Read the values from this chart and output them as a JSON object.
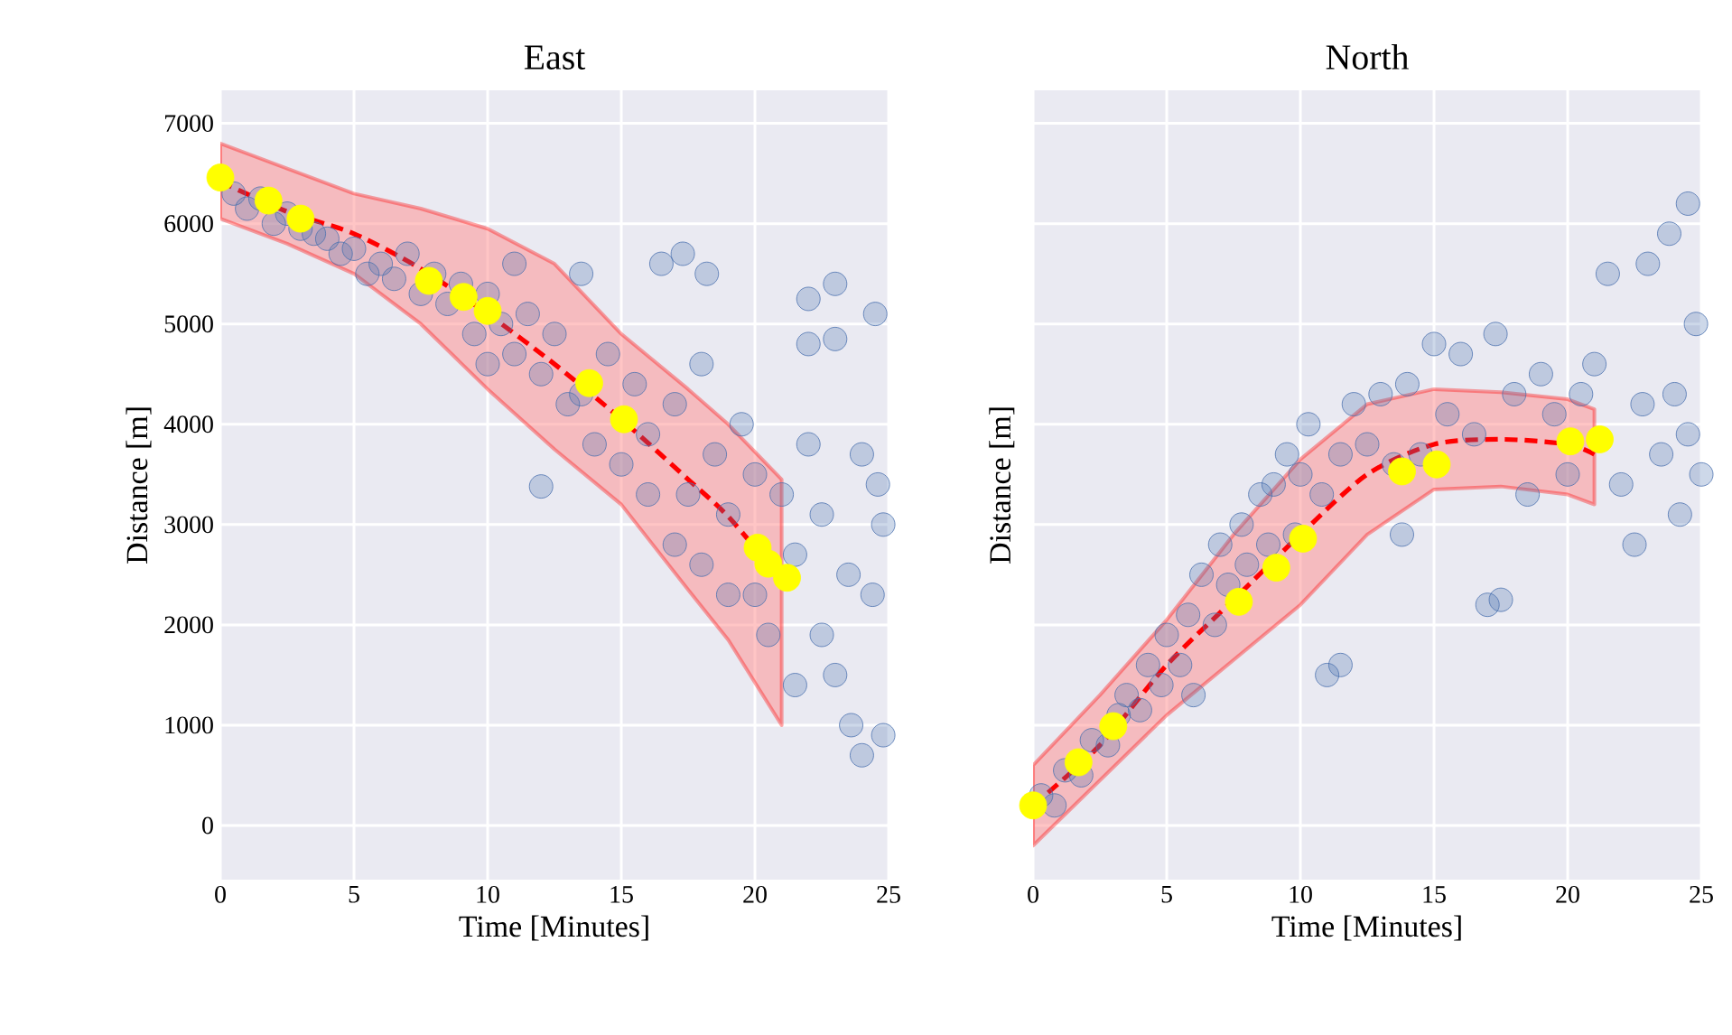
{
  "chart_data": [
    {
      "type": "scatter",
      "title": "East",
      "xlabel": "Time [Minutes]",
      "ylabel": "Distance [m]",
      "xlim": [
        0,
        25
      ],
      "ylim": [
        -540,
        7330
      ],
      "xticks": [
        0,
        5,
        10,
        15,
        20,
        25
      ],
      "yticks": [
        0,
        1000,
        2000,
        3000,
        4000,
        5000,
        6000,
        7000
      ],
      "grid": true,
      "series": [
        {
          "marker": "circle",
          "color": "#4c72b0",
          "x": [
            0.5,
            1,
            1.5,
            2,
            2.5,
            3,
            3.5,
            4,
            4.5,
            5,
            5.5,
            6,
            6.5,
            7,
            7.5,
            8,
            8.5,
            9,
            9.5,
            10,
            10,
            10.5,
            11,
            11,
            11.5,
            12,
            12,
            12.5,
            13,
            13.5,
            13.5,
            14,
            14.5,
            15,
            15.5,
            16,
            16,
            16.5,
            17,
            17,
            17.3,
            17.5,
            18,
            18,
            18.2,
            18.5,
            19,
            19,
            19.5,
            20,
            20,
            20.5,
            21,
            21.5,
            21.5,
            22,
            22,
            22.5,
            22.5,
            23,
            23,
            23.5,
            23.6,
            24,
            24,
            24.4,
            24.5,
            24.8,
            24.8,
            22,
            23,
            24.6
          ],
          "values": [
            6300,
            6150,
            6250,
            6000,
            6100,
            5950,
            5900,
            5850,
            5700,
            5750,
            5500,
            5600,
            5450,
            5700,
            5300,
            5500,
            5200,
            5400,
            4900,
            5300,
            4600,
            5000,
            5600,
            4700,
            5100,
            4500,
            3380,
            4900,
            4200,
            5500,
            4300,
            3800,
            4700,
            3600,
            4400,
            3300,
            3900,
            5600,
            2800,
            4200,
            5700,
            3300,
            2600,
            4600,
            5500,
            3700,
            3100,
            2300,
            4000,
            2300,
            3500,
            1900,
            3300,
            1400,
            2700,
            3800,
            5250,
            1900,
            3100,
            5400,
            1500,
            2500,
            1000,
            700,
            3700,
            2300,
            5100,
            3000,
            900,
            4800,
            4850,
            3400
          ]
        },
        {
          "type": "line",
          "line_style": "dashed",
          "marker": "none",
          "color": "#ff0000",
          "x": [
            0,
            2.5,
            5,
            7.5,
            10,
            12.5,
            15,
            17.5,
            19,
            21
          ],
          "values": [
            6420,
            6120,
            5900,
            5550,
            5100,
            4600,
            4050,
            3450,
            3080,
            2450
          ],
          "lower": [
            6050,
            5800,
            5500,
            5000,
            4350,
            3750,
            3200,
            2350,
            1850,
            1000
          ],
          "upper": [
            6800,
            6550,
            6300,
            6150,
            5950,
            5600,
            4900,
            4350,
            4000,
            3450
          ]
        },
        {
          "marker": "circle",
          "color": "#ffff00",
          "x": [
            0,
            1.8,
            3,
            7.8,
            9.1,
            10,
            13.8,
            15.1,
            20.1,
            20.5,
            21.2
          ],
          "values": [
            6460,
            6230,
            6050,
            5430,
            5270,
            5130,
            4410,
            4050,
            2770,
            2610,
            2470
          ]
        }
      ]
    },
    {
      "type": "scatter",
      "title": "North",
      "xlabel": "Time [Minutes]",
      "ylabel": "Distance [m]",
      "xlim": [
        0,
        25
      ],
      "ylim": [
        -540,
        7330
      ],
      "xticks": [
        0,
        5,
        10,
        15,
        20,
        25
      ],
      "yticks": [
        0,
        1000,
        2000,
        3000,
        4000,
        5000,
        6000,
        7000
      ],
      "grid": true,
      "tick_labels": "x",
      "series": [
        {
          "marker": "circle",
          "color": "#4c72b0",
          "x": [
            0.3,
            0.8,
            1.2,
            1.8,
            2.2,
            2.8,
            3.2,
            3.5,
            4,
            4.3,
            4.8,
            5,
            5.5,
            5.8,
            6,
            6.3,
            6.8,
            7,
            7.3,
            7.8,
            8,
            8.5,
            8.8,
            9,
            9.5,
            9.8,
            10,
            10.3,
            10.8,
            11,
            11.5,
            11.5,
            12,
            12.5,
            13,
            13.5,
            13.8,
            14,
            14.5,
            15,
            15.5,
            16,
            16.5,
            17,
            17.5,
            17.3,
            18,
            18.5,
            19,
            19.5,
            20,
            20.5,
            21,
            21.5,
            22,
            22.5,
            22.8,
            23,
            23.5,
            23.8,
            24,
            24.2,
            24.5,
            24.8,
            25,
            24.5
          ],
          "values": [
            300,
            200,
            550,
            500,
            850,
            800,
            1100,
            1300,
            1150,
            1600,
            1400,
            1900,
            1600,
            2100,
            1300,
            2500,
            2000,
            2800,
            2400,
            3000,
            2600,
            3300,
            2800,
            3400,
            3700,
            2900,
            3500,
            4000,
            3300,
            1500,
            1600,
            3700,
            4200,
            3800,
            4300,
            3600,
            2900,
            4400,
            3700,
            4800,
            4100,
            4700,
            3900,
            2200,
            2250,
            4900,
            4300,
            3300,
            4500,
            4100,
            3500,
            4300,
            4600,
            5500,
            3400,
            2800,
            4200,
            5600,
            3700,
            5900,
            4300,
            3100,
            6200,
            5000,
            3500,
            3900
          ]
        },
        {
          "type": "line",
          "line_style": "dashed",
          "marker": "none",
          "color": "#ff0000",
          "x": [
            0,
            2.5,
            5,
            7.5,
            10,
            12.5,
            15,
            17.5,
            20,
            21
          ],
          "values": [
            200,
            800,
            1600,
            2250,
            2900,
            3500,
            3800,
            3850,
            3800,
            3700
          ],
          "lower": [
            -200,
            450,
            1100,
            1650,
            2200,
            2900,
            3350,
            3380,
            3300,
            3200
          ],
          "upper": [
            600,
            1300,
            2050,
            2900,
            3650,
            4200,
            4350,
            4320,
            4250,
            4150
          ]
        },
        {
          "marker": "circle",
          "color": "#ffff00",
          "x": [
            0,
            1.7,
            3,
            7.7,
            9.1,
            10.1,
            13.8,
            15.1,
            20.1,
            21.2
          ],
          "values": [
            200,
            630,
            990,
            2230,
            2570,
            2860,
            3530,
            3600,
            3830,
            3850
          ]
        }
      ]
    }
  ]
}
